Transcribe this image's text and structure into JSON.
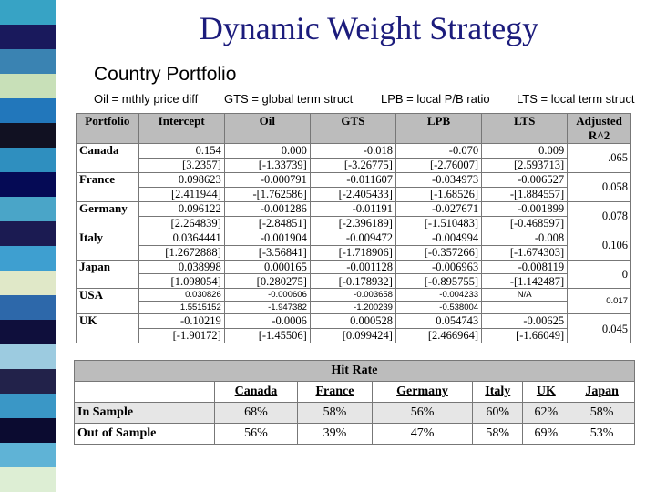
{
  "title": "Dynamic Weight Strategy",
  "subtitle": "Country Portfolio",
  "legend": {
    "oil": "Oil = mthly price diff",
    "gts": "GTS = global term struct",
    "lpb": "LPB = local P/B ratio",
    "lts": "LTS = local term struct"
  },
  "colors": {
    "title": "#1c1c7c",
    "stripe": [
      "#37a3c5",
      "#19195c",
      "#3a83b2",
      "#c8e0b8",
      "#2277bb",
      "#111122",
      "#2f8fbf",
      "#050a55",
      "#4aa5c8",
      "#1b1b52",
      "#3e9fd0",
      "#e0e8c8",
      "#2d68aa",
      "#0f0f3c",
      "#9ccbe0",
      "#22224a",
      "#3a97c6",
      "#0b0b30",
      "#5fb3d6",
      "#ddeed4"
    ]
  },
  "coef_table": {
    "headers": [
      "Portfolio",
      "Intercept",
      "Oil",
      "GTS",
      "LPB",
      "LTS",
      "Adjusted R^2"
    ],
    "rows": [
      {
        "country": "Canada",
        "coef": [
          "0.154",
          "0.000",
          "-0.018",
          "-0.070",
          "0.009",
          ".065"
        ],
        "tstat": [
          "[3.2357]",
          "[-1.33739]",
          "[-3.26775]",
          "[-2.76007]",
          "[2.593713]",
          ""
        ]
      },
      {
        "country": "France",
        "coef": [
          "0.098623",
          "-0.000791",
          "-0.011607",
          "-0.034973",
          "-0.006527",
          "0.058"
        ],
        "tstat": [
          "[2.411944]",
          "-[1.762586]",
          "[-2.405433]",
          "[-1.68526]",
          "-[1.884557]",
          ""
        ]
      },
      {
        "country": "Germany",
        "coef": [
          "0.096122",
          "-0.001286",
          "-0.01191",
          "-0.027671",
          "-0.001899",
          "0.078"
        ],
        "tstat": [
          "[2.264839]",
          "[-2.84851]",
          "[-2.396189]",
          "[-1.510483]",
          "[-0.468597]",
          ""
        ]
      },
      {
        "country": "Italy",
        "coef": [
          "0.0364441",
          "-0.001904",
          "-0.009472",
          "-0.004994",
          "-0.008",
          "0.106"
        ],
        "tstat": [
          "[1.2672888]",
          "[-3.56841]",
          "[-1.718906]",
          "[-0.357266]",
          "[-1.674303]",
          ""
        ]
      },
      {
        "country": "Japan",
        "coef": [
          "0.038998",
          "0.000165",
          "-0.001128",
          "-0.006963",
          "-0.008119",
          "0"
        ],
        "tstat": [
          "[1.098054]",
          "[0.280275]",
          "[-0.178932]",
          "[-0.895755]",
          "-[1.142487]",
          ""
        ]
      },
      {
        "country": "USA",
        "coef": [
          "0.030826",
          "-0.000606",
          "-0.003658",
          "-0.004233",
          "N/A",
          "0.017"
        ],
        "tstat": [
          "1.5515152",
          "-1.947382",
          "-1.200239",
          "-0.538004",
          "",
          ""
        ]
      },
      {
        "country": "UK",
        "coef": [
          "-0.10219",
          "-0.0006",
          "0.000528",
          "0.054743",
          "-0.00625",
          "0.045"
        ],
        "tstat": [
          "[-1.90172]",
          "[-1.45506]",
          "[0.099424]",
          "[2.466964]",
          "[-1.66049]",
          ""
        ]
      }
    ]
  },
  "hit_rate": {
    "title": "Hit Rate",
    "columns": [
      "Canada",
      "France",
      "Germany",
      "Italy",
      "UK",
      "Japan"
    ],
    "rows": [
      {
        "label": "In Sample",
        "values": [
          "68%",
          "58%",
          "56%",
          "60%",
          "62%",
          "58%"
        ]
      },
      {
        "label": "Out of Sample",
        "values": [
          "56%",
          "39%",
          "47%",
          "58%",
          "69%",
          "53%"
        ]
      }
    ]
  }
}
